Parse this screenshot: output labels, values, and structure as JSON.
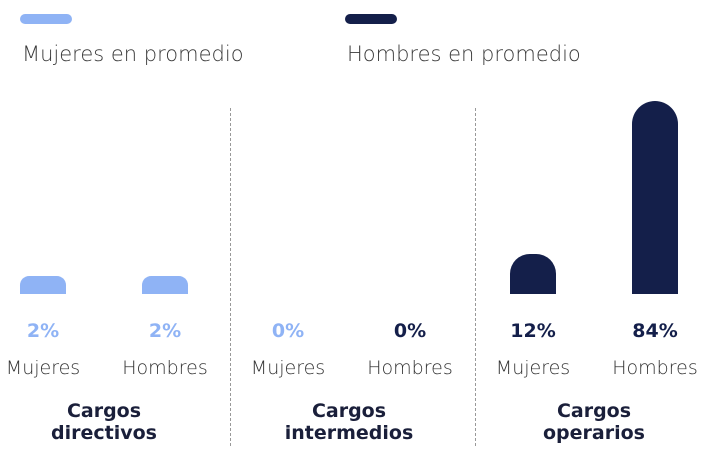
{
  "chart_data": {
    "type": "bar",
    "legend": [
      {
        "name": "Mujeres en promedio",
        "color": "#8fb3f5"
      },
      {
        "name": "Hombres en promedio",
        "color": "#141f4a"
      }
    ],
    "categories": [
      "Cargos directivos",
      "Cargos intermedios",
      "Cargos operarios"
    ],
    "series": [
      {
        "name": "Mujeres",
        "colors": [
          "#8fb3f5",
          "#8fb3f5",
          "#141f4a"
        ],
        "values": [
          2,
          0,
          12
        ],
        "value_labels": [
          "2%",
          "0%",
          "12%"
        ]
      },
      {
        "name": "Hombres",
        "colors": [
          "#8fb3f5",
          "#141f4a",
          "#141f4a"
        ],
        "values": [
          2,
          0,
          84
        ],
        "value_labels": [
          "2%",
          "0%",
          "84%"
        ]
      }
    ]
  }
}
